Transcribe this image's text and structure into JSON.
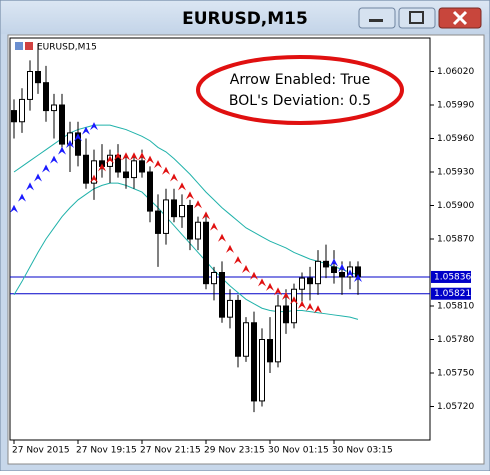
{
  "window": {
    "title": "EURUSD,M15"
  },
  "chart_data": {
    "type": "candlestick",
    "symbol_label": "EURUSD,M15",
    "annotations": [
      "Arrow Enabled: True",
      "BOL's Deviation: 0.5"
    ],
    "categories": [
      "27 Nov 2015",
      null,
      null,
      null,
      null,
      null,
      null,
      null,
      "27 Nov 19:15",
      null,
      null,
      null,
      null,
      null,
      null,
      null,
      "27 Nov 21:15",
      null,
      null,
      null,
      null,
      null,
      null,
      null,
      "29 Nov 23:15",
      null,
      null,
      null,
      null,
      null,
      null,
      null,
      "30 Nov 01:15",
      null,
      null,
      null,
      null,
      null,
      null,
      null,
      "30 Nov 03:15",
      null,
      null,
      null
    ],
    "open": [
      1.05985,
      1.05975,
      1.05995,
      1.0602,
      1.0601,
      1.05985,
      1.0599,
      1.05955,
      1.05965,
      1.05945,
      1.0592,
      1.0594,
      1.05935,
      1.05945,
      1.0593,
      1.05925,
      1.0594,
      1.0593,
      1.05895,
      1.05875,
      1.05905,
      1.0589,
      1.059,
      1.0587,
      1.05885,
      1.0583,
      1.0584,
      1.058,
      1.05815,
      1.05765,
      1.05795,
      1.05725,
      1.0578,
      1.0576,
      1.0581,
      1.05795,
      1.05825,
      1.05835,
      1.0583,
      1.0585,
      1.05845,
      1.0584,
      1.05836,
      1.05845
    ],
    "high": [
      1.05995,
      1.06005,
      1.0603,
      1.06045,
      1.06025,
      1.06,
      1.06,
      1.05975,
      1.05975,
      1.0596,
      1.0595,
      1.05955,
      1.0595,
      1.05955,
      1.05945,
      1.05945,
      1.0595,
      1.05935,
      1.0591,
      1.05915,
      1.05915,
      1.0591,
      1.05905,
      1.0589,
      1.0589,
      1.05845,
      1.0585,
      1.05825,
      1.0582,
      1.058,
      1.05805,
      1.0579,
      1.058,
      1.0582,
      1.05825,
      1.0583,
      1.0584,
      1.05845,
      1.0586,
      1.05865,
      1.0586,
      1.0585,
      1.0585,
      1.0585
    ],
    "low": [
      1.0596,
      1.05965,
      1.05985,
      1.06,
      1.05975,
      1.0596,
      1.0595,
      1.0593,
      1.05935,
      1.05915,
      1.05905,
      1.05925,
      1.0592,
      1.05925,
      1.05915,
      1.05915,
      1.05925,
      1.05885,
      1.05845,
      1.05865,
      1.05885,
      1.0588,
      1.0586,
      1.0586,
      1.05825,
      1.05815,
      1.05795,
      1.0579,
      1.05755,
      1.0576,
      1.05715,
      1.0572,
      1.0575,
      1.05755,
      1.05785,
      1.0579,
      1.0581,
      1.05815,
      1.0582,
      1.05835,
      1.0583,
      1.0582,
      1.05825,
      1.0582
    ],
    "close": [
      1.05975,
      1.05995,
      1.0602,
      1.0601,
      1.05985,
      1.0599,
      1.05955,
      1.05965,
      1.05945,
      1.0592,
      1.0594,
      1.05935,
      1.05945,
      1.0593,
      1.05925,
      1.0594,
      1.0593,
      1.05895,
      1.05875,
      1.05905,
      1.0589,
      1.059,
      1.0587,
      1.05885,
      1.0583,
      1.0584,
      1.058,
      1.05815,
      1.05765,
      1.05795,
      1.05725,
      1.0578,
      1.0576,
      1.0581,
      1.05795,
      1.05825,
      1.05835,
      1.0583,
      1.0585,
      1.05845,
      1.0584,
      1.05836,
      1.05845,
      1.05836
    ],
    "overlays": [
      {
        "style": "line",
        "color": "#20b2aa",
        "values": [
          1.0593,
          1.05935,
          1.0594,
          1.05945,
          1.0595,
          1.05955,
          1.0596,
          1.05965,
          1.05968,
          1.0597,
          1.05972,
          1.05972,
          1.05972,
          1.0597,
          1.05968,
          1.05965,
          1.05962,
          1.05958,
          1.05952,
          1.05948,
          1.05942,
          1.05935,
          1.05928,
          1.0592,
          1.05912,
          1.05905,
          1.05898,
          1.05892,
          1.05886,
          1.0588,
          1.05876,
          1.05872,
          1.05868,
          1.05865,
          1.05862,
          1.05858,
          1.05855,
          1.05852,
          1.0585,
          1.05848,
          1.05845,
          1.05843,
          1.0584,
          1.05838
        ]
      },
      {
        "style": "line",
        "color": "#20b2aa",
        "values": [
          1.0582,
          1.05832,
          1.05845,
          1.05858,
          1.0587,
          1.0588,
          1.0589,
          1.05898,
          1.05905,
          1.0591,
          1.05915,
          1.05918,
          1.0592,
          1.0592,
          1.05918,
          1.05915,
          1.05912,
          1.05905,
          1.05898,
          1.0589,
          1.05882,
          1.05874,
          1.05866,
          1.05858,
          1.0585,
          1.05842,
          1.05835,
          1.05828,
          1.05822,
          1.05816,
          1.05812,
          1.05808,
          1.05806,
          1.05805,
          1.05805,
          1.05806,
          1.05806,
          1.05805,
          1.05804,
          1.05803,
          1.05802,
          1.05801,
          1.058,
          1.05798
        ]
      },
      {
        "style": "arrows",
        "color": "#1a1aff",
        "values": [
          1.05898,
          1.05908,
          1.05918,
          1.05926,
          1.05934,
          1.05942,
          1.0595,
          1.05956,
          1.05962,
          1.05968,
          1.05972,
          null,
          null,
          null,
          null,
          null,
          null,
          null,
          null,
          null,
          null,
          null,
          null,
          null,
          null,
          null,
          null,
          null,
          null,
          null,
          null,
          null,
          null,
          null,
          null,
          null,
          null,
          null,
          null,
          null,
          1.0585,
          1.05845,
          1.0584,
          1.05836
        ]
      },
      {
        "style": "arrows",
        "color": "#e01010",
        "values": [
          null,
          null,
          null,
          null,
          null,
          null,
          null,
          null,
          null,
          null,
          1.05925,
          1.05935,
          1.05942,
          1.05945,
          1.05945,
          1.05945,
          1.05945,
          1.05942,
          1.05938,
          1.05932,
          1.05926,
          1.05918,
          1.0591,
          1.05902,
          1.05892,
          1.05882,
          1.05872,
          1.05862,
          1.05852,
          1.05844,
          1.05838,
          1.05832,
          1.05828,
          1.05824,
          1.0582,
          1.05816,
          1.05812,
          1.0581,
          1.05808,
          null,
          null,
          null,
          null,
          null
        ]
      }
    ],
    "hlines": [
      {
        "value": 1.05836,
        "label": "1.05836",
        "color": "#0000c8"
      },
      {
        "value": 1.05821,
        "label": "1.05821",
        "color": "#0000c8"
      }
    ],
    "ylim": [
      1.0569,
      1.0605
    ],
    "yticks": [
      {
        "value": 1.0602,
        "label": "1.06020"
      },
      {
        "value": 1.0599,
        "label": "1.05990"
      },
      {
        "value": 1.0596,
        "label": "1.05960"
      },
      {
        "value": 1.0593,
        "label": "1.05930"
      },
      {
        "value": 1.059,
        "label": "1.05900"
      },
      {
        "value": 1.0587,
        "label": "1.05870"
      },
      {
        "value": 1.0581,
        "label": "1.05810"
      },
      {
        "value": 1.0578,
        "label": "1.05780"
      },
      {
        "value": 1.0575,
        "label": "1.05750"
      },
      {
        "value": 1.0572,
        "label": "1.05720"
      }
    ]
  }
}
